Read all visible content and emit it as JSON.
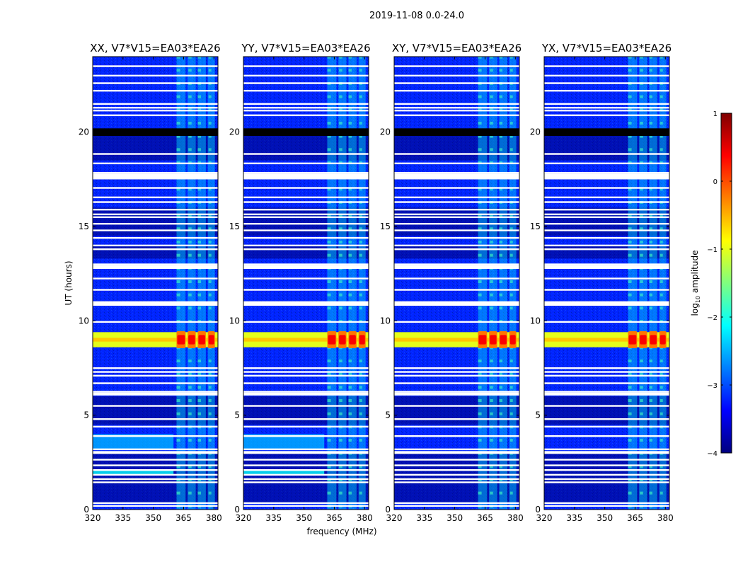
{
  "figure": {
    "suptitle": "2019-11-08 0.0-24.0",
    "xlabel": "frequency (MHz)",
    "ylabel": "UT (hours)"
  },
  "colorbar": {
    "label_main": "log",
    "label_sub": "10",
    "label_tail": " amplitude",
    "colormap": "jet",
    "range": [
      -4,
      1
    ],
    "ticks": [
      -4,
      -3,
      -2,
      -1,
      0,
      1
    ],
    "tick_labels": [
      "−4",
      "−3",
      "−2",
      "−1",
      "0",
      "1"
    ],
    "colors": [
      "#00007f",
      "#0000ff",
      "#007fff",
      "#00ffff",
      "#7fff7f",
      "#ffff00",
      "#ff7f00",
      "#ff0000",
      "#7f0000"
    ]
  },
  "chart_data": {
    "type": "heatmap",
    "description_z": "log10 amplitude",
    "x_range_mhz": [
      320,
      382
    ],
    "y_range_hours": [
      0,
      24
    ],
    "x_ticks": [
      320,
      335,
      350,
      365,
      380
    ],
    "y_ticks": [
      0,
      5,
      10,
      15,
      20
    ],
    "panels": [
      {
        "title": "XX, V7*V15=EA03*EA26",
        "pol": "XX"
      },
      {
        "title": "YY, V7*V15=EA03*EA26",
        "pol": "YY"
      },
      {
        "title": "XY, V7*V15=EA03*EA26",
        "pol": "XY"
      },
      {
        "title": "YX, V7*V15=EA03*EA26",
        "pol": "YX"
      }
    ],
    "background_level": -3.2,
    "rfi_band_mhz": [
      360,
      381
    ],
    "rfi_subbands_mhz": [
      [
        361.5,
        366
      ],
      [
        367,
        371
      ],
      [
        372,
        376
      ],
      [
        377,
        380.5
      ]
    ],
    "rfi_band_level": -2.3,
    "strong_event": {
      "ut_hours": [
        8.6,
        9.4
      ],
      "level_broadband": -1.0,
      "level_peak": 0.4
    },
    "flagged_white_hours": [
      0.2,
      0.35,
      1.45,
      1.62,
      1.85,
      2.1,
      2.35,
      2.65,
      3.05,
      3.2,
      3.9,
      4.4,
      4.8,
      5.5,
      6.1,
      6.25,
      6.7,
      7.1,
      7.3,
      7.5,
      9.95,
      10.85,
      11.0,
      11.65,
      12.25,
      12.85,
      13.0,
      13.8,
      14.0,
      14.4,
      14.8,
      15.15,
      15.5,
      15.65,
      15.9,
      16.3,
      16.55,
      17.05,
      17.55,
      17.75,
      17.85,
      18.35,
      18.85,
      20.9,
      21.15,
      21.3,
      21.5,
      22.2,
      22.6,
      23.0,
      23.5
    ],
    "flagged_black_hours": [
      [
        19.8,
        20.2
      ]
    ],
    "dark_band_hours": [
      [
        0.3,
        3.0
      ],
      [
        4.5,
        6.0
      ],
      [
        13.3,
        14.0
      ],
      [
        14.5,
        16.0
      ],
      [
        18.5,
        19.8
      ]
    ],
    "cyan_stripes": [
      {
        "ut_hours": [
          1.8,
          2.1
        ],
        "level": -2.1,
        "panels": [
          "XX",
          "YY"
        ]
      },
      {
        "ut_hours": [
          3.2,
          4.0
        ],
        "level": -2.5,
        "panels": [
          "XX",
          "YY"
        ]
      }
    ]
  }
}
